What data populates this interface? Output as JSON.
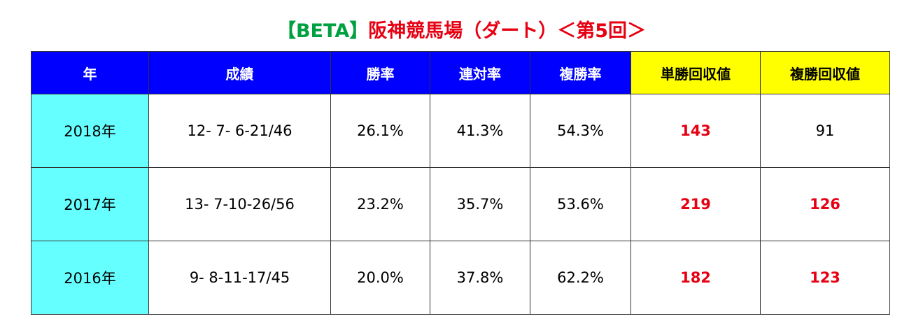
{
  "title": {
    "badge": "【BETA】",
    "text": "阪神競馬場（ダート）＜第5回＞"
  },
  "table": {
    "header": [
      "年",
      "成績",
      "勝率",
      "連対率",
      "複勝率",
      "単勝回収値",
      "複勝回収値"
    ],
    "rows": [
      [
        "2018年",
        "12- 7- 6-21/46",
        "26.1%",
        "41.3%",
        "54.3%",
        "143",
        "91"
      ],
      [
        "2017年",
        "13- 7-10-26/56",
        "23.2%",
        "35.7%",
        "53.6%",
        "219",
        "126"
      ],
      [
        "2016年",
        "9- 8-11-17/45",
        "20.0%",
        "37.8%",
        "62.2%",
        "182",
        "123"
      ]
    ]
  }
}
